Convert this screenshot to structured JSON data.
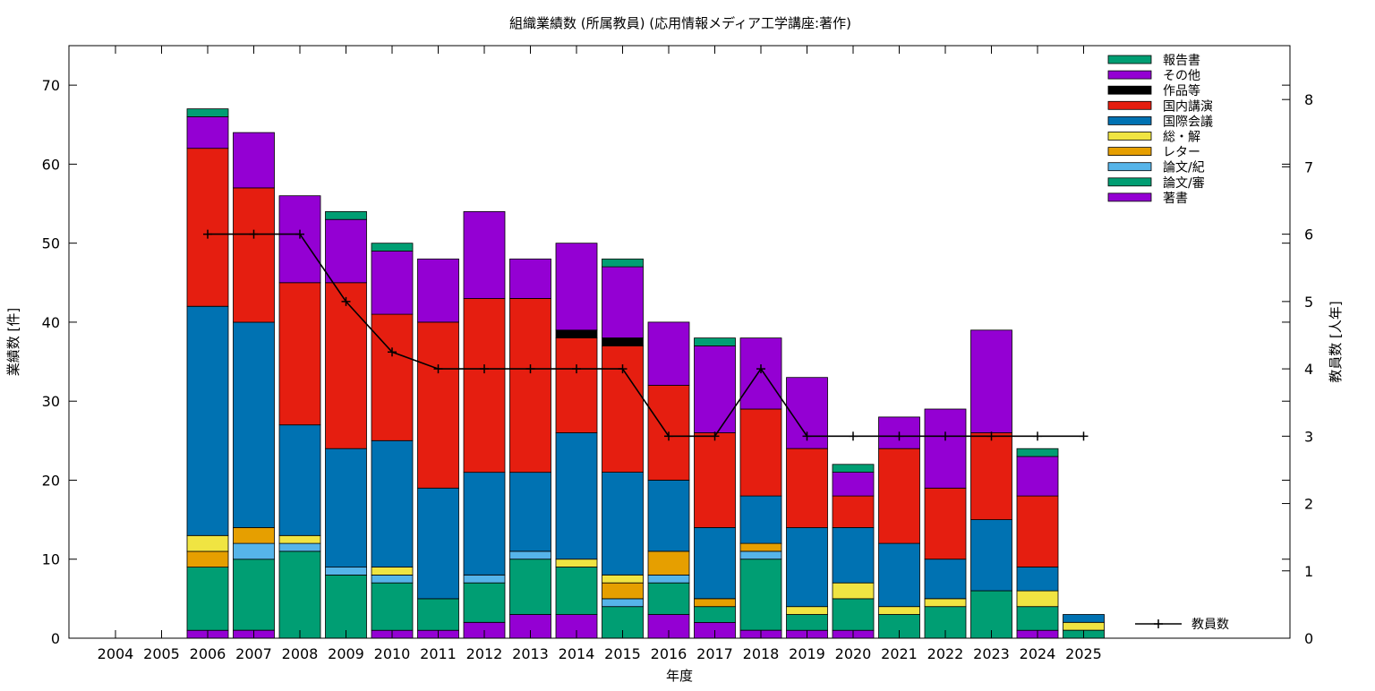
{
  "chart_data": {
    "type": "bar",
    "title": "組織業績数 (所属教員) (応用情報メディア工学講座:著作)",
    "xlabel": "年度",
    "ylabel": "業績数 [件]",
    "y2label": "教員数 [人年]",
    "ylim": [
      0,
      75
    ],
    "y2lim": [
      0,
      8.8
    ],
    "yticks": [
      0,
      10,
      20,
      30,
      40,
      50,
      60,
      70
    ],
    "y2ticks": [
      0,
      1,
      2,
      3,
      4,
      5,
      6,
      7,
      8
    ],
    "categories": [
      "2004",
      "2005",
      "2006",
      "2007",
      "2008",
      "2009",
      "2010",
      "2011",
      "2012",
      "2013",
      "2014",
      "2015",
      "2016",
      "2017",
      "2018",
      "2019",
      "2020",
      "2021",
      "2022",
      "2023",
      "2024",
      "2025"
    ],
    "stacked": true,
    "grid": false,
    "legend_position": "top-right",
    "series": [
      {
        "name": "著書",
        "color": "#9400d3",
        "values": [
          0,
          0,
          1,
          1,
          0,
          0,
          1,
          1,
          2,
          3,
          3,
          0,
          3,
          2,
          1,
          1,
          1,
          0,
          0,
          0,
          1,
          0
        ]
      },
      {
        "name": "論文/審",
        "color": "#009e73",
        "values": [
          0,
          0,
          8,
          9,
          11,
          8,
          6,
          4,
          5,
          7,
          6,
          4,
          4,
          2,
          9,
          2,
          4,
          3,
          4,
          6,
          3,
          1
        ]
      },
      {
        "name": "論文/紀",
        "color": "#56b4e9",
        "values": [
          0,
          0,
          0,
          2,
          1,
          1,
          1,
          0,
          1,
          1,
          0,
          1,
          1,
          0,
          1,
          0,
          0,
          0,
          0,
          0,
          0,
          0
        ]
      },
      {
        "name": "レター",
        "color": "#e69f00",
        "values": [
          0,
          0,
          2,
          2,
          0,
          0,
          0,
          0,
          0,
          0,
          0,
          2,
          3,
          1,
          1,
          0,
          0,
          0,
          0,
          0,
          0,
          0
        ]
      },
      {
        "name": "総・解",
        "color": "#f0e442",
        "values": [
          0,
          0,
          2,
          0,
          1,
          0,
          1,
          0,
          0,
          0,
          1,
          1,
          0,
          0,
          0,
          1,
          2,
          1,
          1,
          0,
          2,
          1
        ]
      },
      {
        "name": "国際会議",
        "color": "#0072b2",
        "values": [
          0,
          0,
          29,
          26,
          14,
          15,
          16,
          14,
          13,
          10,
          16,
          13,
          9,
          9,
          6,
          10,
          7,
          8,
          5,
          9,
          3,
          1
        ]
      },
      {
        "name": "国内講演",
        "color": "#e51e10",
        "values": [
          0,
          0,
          20,
          17,
          18,
          21,
          16,
          21,
          22,
          22,
          12,
          16,
          12,
          12,
          11,
          10,
          4,
          12,
          9,
          11,
          9,
          0
        ]
      },
      {
        "name": "作品等",
        "color": "#000000",
        "values": [
          0,
          0,
          0,
          0,
          0,
          0,
          0,
          0,
          0,
          0,
          1,
          1,
          0,
          0,
          0,
          0,
          0,
          0,
          0,
          0,
          0,
          0
        ]
      },
      {
        "name": "その他",
        "color": "#9400d3",
        "values": [
          0,
          0,
          4,
          7,
          11,
          8,
          8,
          8,
          11,
          5,
          11,
          9,
          8,
          11,
          9,
          9,
          3,
          4,
          10,
          13,
          5,
          0
        ]
      },
      {
        "name": "報告書",
        "color": "#009e73",
        "values": [
          0,
          0,
          1,
          0,
          0,
          1,
          1,
          0,
          0,
          0,
          0,
          1,
          0,
          1,
          0,
          0,
          1,
          0,
          0,
          0,
          1,
          0
        ]
      }
    ],
    "line_series": {
      "name": "教員数",
      "color": "#000000",
      "axis": "y2",
      "values": [
        null,
        null,
        6,
        6,
        6,
        5,
        4.25,
        4,
        4,
        4,
        4,
        4,
        3,
        3,
        4,
        3,
        3,
        3,
        3,
        3,
        3,
        3
      ]
    }
  }
}
